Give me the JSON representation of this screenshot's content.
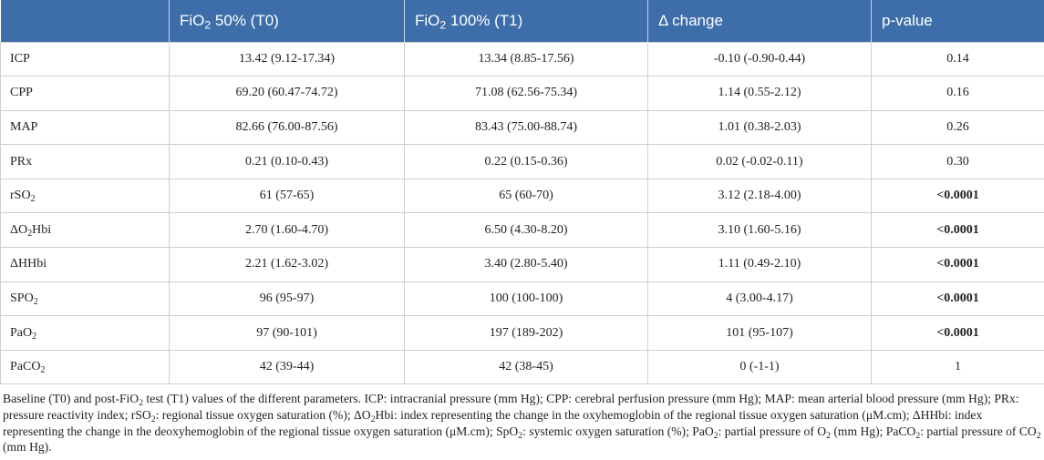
{
  "header": {
    "col0": "",
    "col1": {
      "pre": "FiO",
      "sub": "2",
      "post": " 50% (T0)"
    },
    "col2": {
      "pre": "FiO",
      "sub": "2",
      "post": " 100% (T1)"
    },
    "col3": "Δ change",
    "col4": "p-value"
  },
  "rows": [
    {
      "label": {
        "pre": "ICP",
        "sub": "",
        "post": ""
      },
      "t0": "13.42 (9.12-17.34)",
      "t1": "13.34 (8.85-17.56)",
      "delta": "-0.10 (-0.90-0.44)",
      "p": "0.14",
      "p_bold": false
    },
    {
      "label": {
        "pre": "CPP",
        "sub": "",
        "post": ""
      },
      "t0": "69.20 (60.47-74.72)",
      "t1": "71.08 (62.56-75.34)",
      "delta": "1.14 (0.55-2.12)",
      "p": "0.16",
      "p_bold": false
    },
    {
      "label": {
        "pre": "MAP",
        "sub": "",
        "post": ""
      },
      "t0": "82.66 (76.00-87.56)",
      "t1": "83.43 (75.00-88.74)",
      "delta": "1.01 (0.38-2.03)",
      "p": "0.26",
      "p_bold": false
    },
    {
      "label": {
        "pre": "PRx",
        "sub": "",
        "post": ""
      },
      "t0": "0.21 (0.10-0.43)",
      "t1": "0.22 (0.15-0.36)",
      "delta": "0.02 (-0.02-0.11)",
      "p": "0.30",
      "p_bold": false
    },
    {
      "label": {
        "pre": "rSO",
        "sub": "2",
        "post": ""
      },
      "t0": "61 (57-65)",
      "t1": "65 (60-70)",
      "delta": "3.12 (2.18-4.00)",
      "p": "<0.0001",
      "p_bold": true
    },
    {
      "label": {
        "pre": "ΔO",
        "sub": "2",
        "post": "Hbi"
      },
      "t0": "2.70 (1.60-4.70)",
      "t1": "6.50 (4.30-8.20)",
      "delta": "3.10 (1.60-5.16)",
      "p": "<0.0001",
      "p_bold": true
    },
    {
      "label": {
        "pre": "ΔHHbi",
        "sub": "",
        "post": ""
      },
      "t0": "2.21 (1.62-3.02)",
      "t1": "3.40 (2.80-5.40)",
      "delta": "1.11 (0.49-2.10)",
      "p": "<0.0001",
      "p_bold": true
    },
    {
      "label": {
        "pre": "SPO",
        "sub": "2",
        "post": ""
      },
      "t0": "96 (95-97)",
      "t1": "100 (100-100)",
      "delta": "4 (3.00-4.17)",
      "p": "<0.0001",
      "p_bold": true
    },
    {
      "label": {
        "pre": "PaO",
        "sub": "2",
        "post": ""
      },
      "t0": "97 (90-101)",
      "t1": "197 (189-202)",
      "delta": "101 (95-107)",
      "p": "<0.0001",
      "p_bold": true
    },
    {
      "label": {
        "pre": "PaCO",
        "sub": "2",
        "post": ""
      },
      "t0": "42 (39-44)",
      "t1": "42 (38-45)",
      "delta": "0 (-1-1)",
      "p": "1",
      "p_bold": false
    }
  ],
  "caption": {
    "s01": "Baseline (T0) and post-FiO",
    "s02": "2",
    "s03": " test (T1) values of the different parameters. ICP: intracranial pressure (mm Hg); CPP: cerebral perfusion pressure (mm Hg); MAP: mean arterial blood pressure (mm Hg); PRx: pressure reactivity index; rSO",
    "s04": "2",
    "s05": ": regional tissue oxygen saturation (%); ΔO",
    "s06": "2",
    "s07": "Hbi: index representing the change in the oxyhemoglobin of the regional tissue oxygen saturation (μM.cm); ΔHHbi: index representing the change in the deoxyhemoglobin of the regional tissue oxygen saturation (μM.cm); SpO",
    "s08": "2",
    "s09": ": systemic oxygen saturation (%); PaO",
    "s10": "2",
    "s11": ": partial pressure of O",
    "s12": "2",
    "s13": " (mm Hg); PaCO",
    "s14": "2",
    "s15": ": partial pressure of CO",
    "s16": "2",
    "s17": " (mm Hg)."
  }
}
